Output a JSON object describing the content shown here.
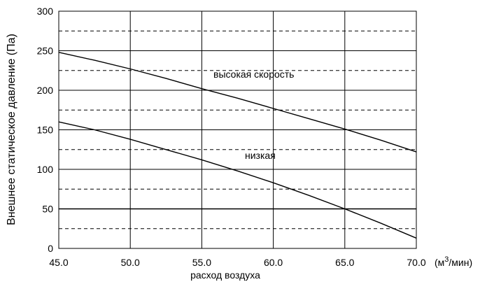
{
  "chart_data": {
    "type": "line",
    "title": "",
    "xlabel": "расход воздуха",
    "ylabel": "Внешнее статическое давление (Па)",
    "x_unit_prefix": "(м",
    "x_unit_sup": "3",
    "x_unit_suffix": "/мин)",
    "xlim": [
      45.0,
      70.0
    ],
    "ylim": [
      0,
      300
    ],
    "x_ticks": [
      45.0,
      50.0,
      55.0,
      60.0,
      65.0,
      70.0
    ],
    "x_tick_labels": [
      "45.0",
      "50.0",
      "55.0",
      "60.0",
      "65.0",
      "70.0"
    ],
    "y_ticks": [
      0,
      50,
      100,
      150,
      200,
      250,
      300
    ],
    "y_tick_labels": [
      "0",
      "50",
      "100",
      "150",
      "200",
      "250",
      "300"
    ],
    "minor_y_gridlines": [
      25,
      75,
      125,
      175,
      225,
      275
    ],
    "grid": true,
    "series": [
      {
        "annotation": "высокая скорость",
        "x": [
          45.0,
          47.5,
          50.0,
          52.5,
          55.0,
          57.5,
          60.0,
          62.5,
          65.0,
          67.5,
          70.0
        ],
        "y": [
          248,
          238,
          227,
          215,
          202,
          190,
          177,
          164,
          151,
          137,
          122
        ]
      },
      {
        "annotation": "низкая",
        "x": [
          45.0,
          47.5,
          50.0,
          52.5,
          55.0,
          57.5,
          60.0,
          62.5,
          65.0,
          67.5,
          70.0
        ],
        "y": [
          160,
          150,
          138,
          125,
          112,
          98,
          83,
          67,
          50,
          32,
          13
        ]
      }
    ]
  }
}
